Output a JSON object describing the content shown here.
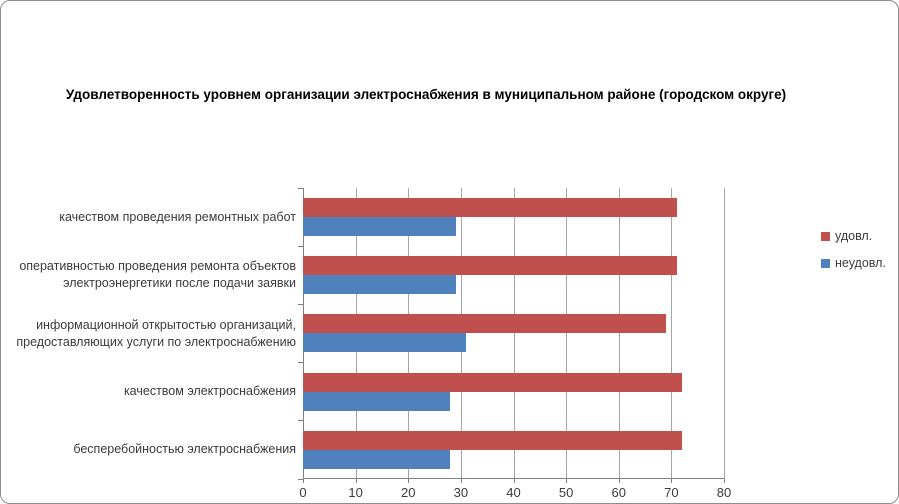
{
  "chart_data": {
    "type": "bar",
    "orientation": "horizontal",
    "title": "Удовлетворенность уровнем организации  электроснабжения в муниципальном районе (городском округе)",
    "categories": [
      "качеством проведения ремонтных работ",
      "оперативностью проведения ремонта объектов электроэнергетики  после подачи заявки",
      "информационной открытостью организаций, предоставляющих услуги по электроснабжению",
      "качеством электроснабжения",
      "бесперебойностью  электроснабжения"
    ],
    "series": [
      {
        "name": "удовл.",
        "color": "#C0504D",
        "values": [
          71,
          71,
          69,
          72,
          72
        ]
      },
      {
        "name": "неудовл.",
        "color": "#4F81BD",
        "values": [
          29,
          29,
          31,
          28,
          28
        ]
      }
    ],
    "xlim": [
      0,
      80
    ],
    "xticks": [
      0,
      10,
      20,
      30,
      40,
      50,
      60,
      70,
      80
    ],
    "grid": true,
    "legend_position": "right",
    "axis_color": "#808080",
    "gridline_color": "#A6A6A6"
  }
}
